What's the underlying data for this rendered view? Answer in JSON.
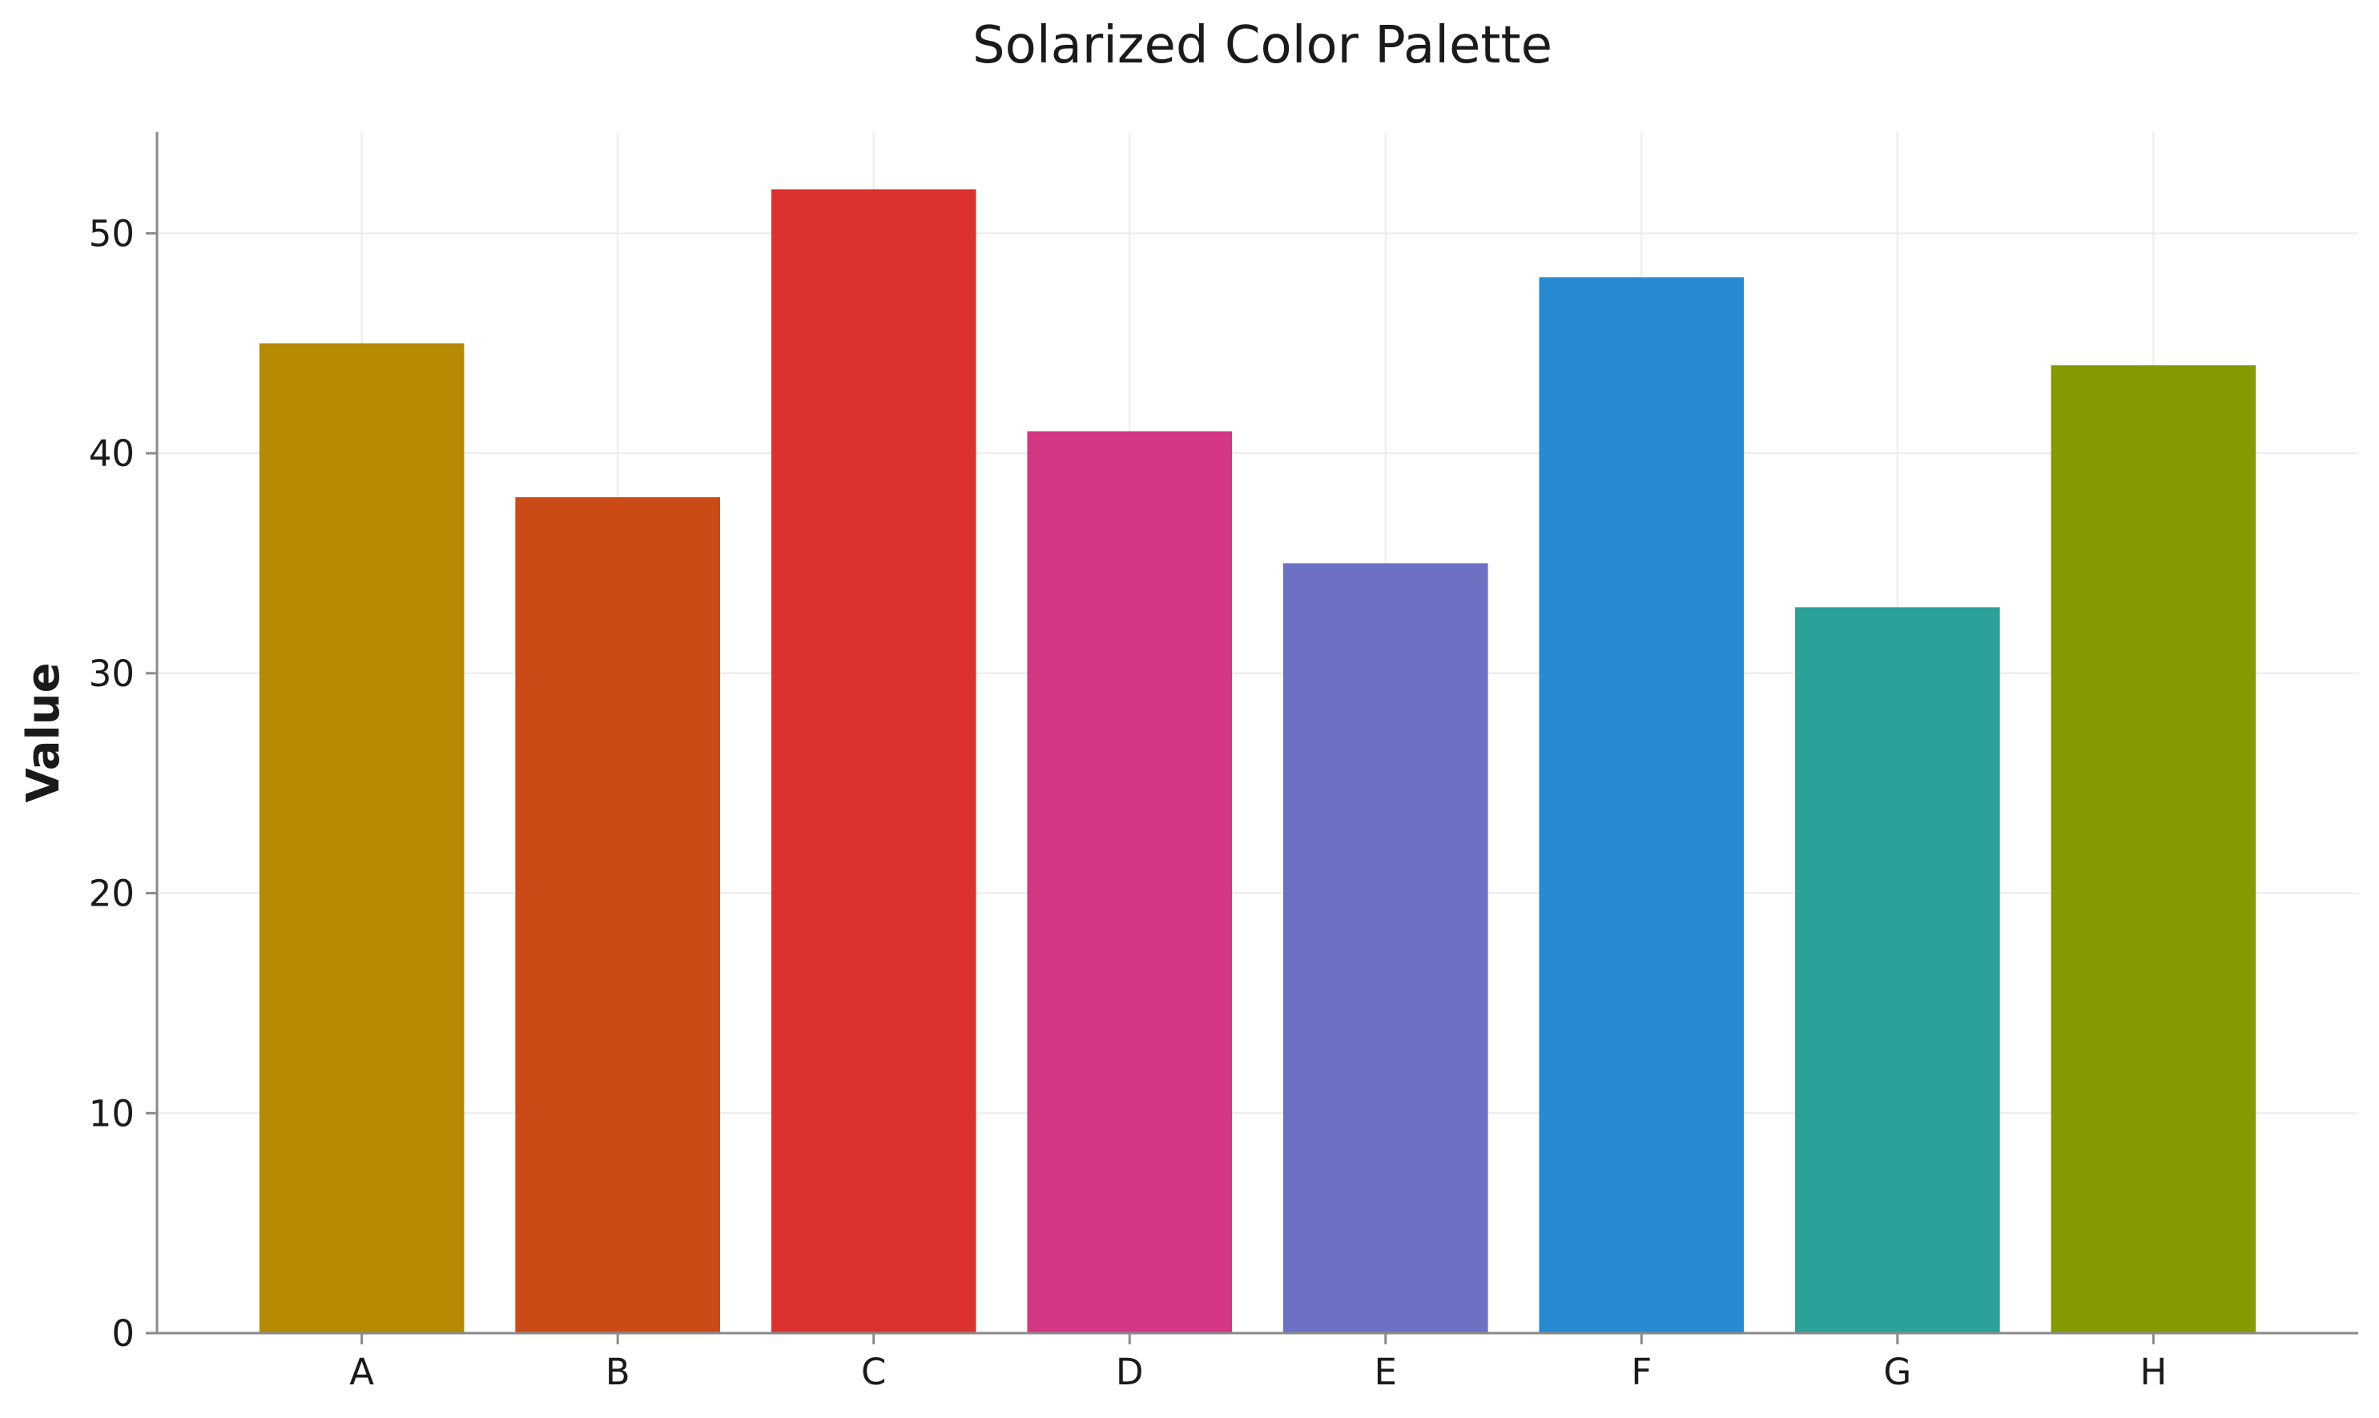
{
  "chart_data": {
    "type": "bar",
    "title": "Solarized Color Palette",
    "xlabel": "",
    "ylabel": "Value",
    "categories": [
      "A",
      "B",
      "C",
      "D",
      "E",
      "F",
      "G",
      "H"
    ],
    "values": [
      45,
      38,
      52,
      41,
      35,
      48,
      33,
      44
    ],
    "colors": [
      "#b58900",
      "#cb4b16",
      "#dc322f",
      "#d33682",
      "#6c71c4",
      "#268bd2",
      "#2aa198",
      "#859900"
    ],
    "ylim": [
      0,
      54.6
    ],
    "yticks": [
      0,
      10,
      20,
      30,
      40,
      50
    ],
    "grid": true,
    "legend": "none"
  }
}
